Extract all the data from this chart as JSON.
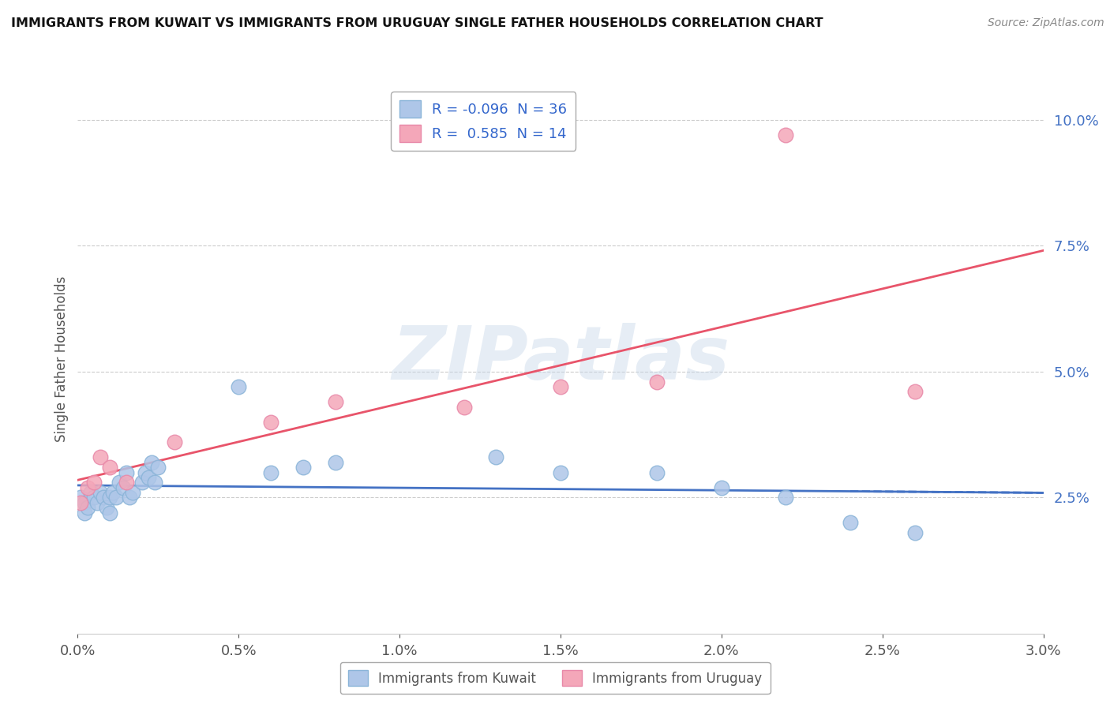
{
  "title": "IMMIGRANTS FROM KUWAIT VS IMMIGRANTS FROM URUGUAY SINGLE FATHER HOUSEHOLDS CORRELATION CHART",
  "source": "Source: ZipAtlas.com",
  "ylabel": "Single Father Households",
  "legend_labels": [
    "Immigrants from Kuwait",
    "Immigrants from Uruguay"
  ],
  "legend_R": [
    -0.096,
    0.585
  ],
  "legend_N": [
    36,
    14
  ],
  "kuwait_color": "#aec6e8",
  "uruguay_color": "#f4a7b9",
  "kuwait_line_color": "#4472c4",
  "uruguay_line_color": "#e8546a",
  "background_color": "#ffffff",
  "watermark_text": "ZIPatlas",
  "xlim": [
    0.0,
    0.03
  ],
  "ylim": [
    -0.002,
    0.107
  ],
  "yticks": [
    0.025,
    0.05,
    0.075,
    0.1
  ],
  "kuwait_x": [
    0.0001,
    0.0002,
    0.0002,
    0.0003,
    0.0004,
    0.0005,
    0.0006,
    0.0007,
    0.0008,
    0.0009,
    0.001,
    0.001,
    0.0011,
    0.0012,
    0.0013,
    0.0014,
    0.0015,
    0.0016,
    0.0017,
    0.002,
    0.0021,
    0.0022,
    0.0023,
    0.0024,
    0.0025,
    0.005,
    0.006,
    0.007,
    0.008,
    0.013,
    0.015,
    0.018,
    0.02,
    0.022,
    0.024,
    0.026
  ],
  "kuwait_y": [
    0.025,
    0.024,
    0.022,
    0.023,
    0.026,
    0.025,
    0.024,
    0.026,
    0.025,
    0.023,
    0.025,
    0.022,
    0.026,
    0.025,
    0.028,
    0.027,
    0.03,
    0.025,
    0.026,
    0.028,
    0.03,
    0.029,
    0.032,
    0.028,
    0.031,
    0.047,
    0.03,
    0.031,
    0.032,
    0.033,
    0.03,
    0.03,
    0.027,
    0.025,
    0.02,
    0.018
  ],
  "uruguay_x": [
    0.0001,
    0.0003,
    0.0005,
    0.0007,
    0.001,
    0.0015,
    0.003,
    0.006,
    0.008,
    0.012,
    0.015,
    0.018,
    0.022,
    0.026
  ],
  "uruguay_y": [
    0.024,
    0.027,
    0.028,
    0.033,
    0.031,
    0.028,
    0.036,
    0.04,
    0.044,
    0.043,
    0.047,
    0.048,
    0.097,
    0.046
  ]
}
